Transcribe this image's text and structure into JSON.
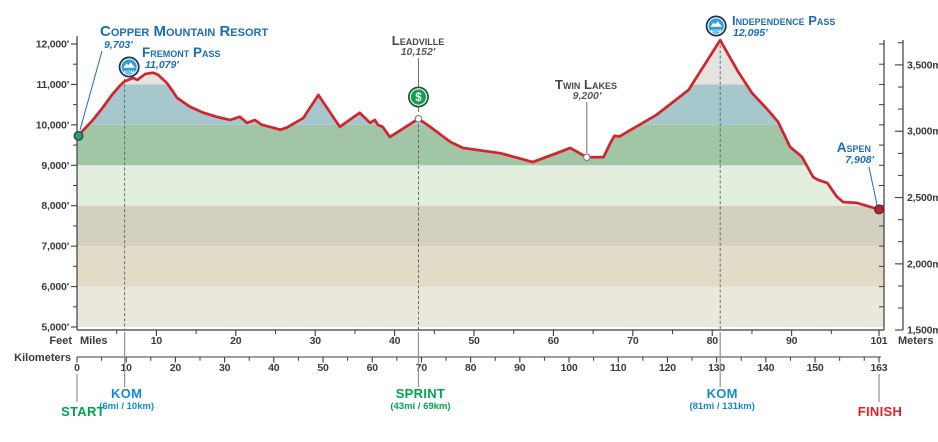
{
  "colors": {
    "red_line": "#d3232b",
    "label_blue": "#1b6eb5",
    "label_dark": "#474747",
    "elev_dark": "#5a5a5a",
    "kom_blue": "#0f8ccc",
    "green": "#00a551",
    "finish_red": "#e61e25",
    "axis_dark": "#3b3c3e",
    "connector_gray": "#919191",
    "marker_line_gray": "#6b6b6b",
    "dash_gray": "#5c5c5c",
    "badge_navy": "#16375f",
    "badge_blue": "#2e9fd8",
    "badge_green": "#13a14f",
    "badge_green_ring": "#1e5b3c",
    "start_dot": "#2ca05c",
    "end_dot": "#c8202a",
    "white_dot_stroke": "#7a7a7a",
    "white": "#ffffff"
  },
  "chart_data": {
    "type": "area",
    "profile_units": [
      "miles",
      "feet"
    ],
    "profile": [
      [
        0,
        9703
      ],
      [
        2,
        10120
      ],
      [
        3.3,
        10440
      ],
      [
        4.4,
        10740
      ],
      [
        5.5,
        10990
      ],
      [
        6,
        11079
      ],
      [
        7.1,
        11160
      ],
      [
        7.6,
        11110
      ],
      [
        8.6,
        11260
      ],
      [
        9.6,
        11290
      ],
      [
        10.2,
        11240
      ],
      [
        11.3,
        11040
      ],
      [
        12.1,
        10820
      ],
      [
        12.6,
        10670
      ],
      [
        14.2,
        10450
      ],
      [
        15.9,
        10300
      ],
      [
        17.6,
        10200
      ],
      [
        19.3,
        10120
      ],
      [
        20.5,
        10200
      ],
      [
        21.4,
        10050
      ],
      [
        22.4,
        10120
      ],
      [
        23.3,
        10000
      ],
      [
        24.3,
        9950
      ],
      [
        25.6,
        9880
      ],
      [
        26.4,
        9930
      ],
      [
        28.5,
        10170
      ],
      [
        30.4,
        10740
      ],
      [
        33.1,
        9950
      ],
      [
        35.6,
        10300
      ],
      [
        36.9,
        10050
      ],
      [
        37.5,
        10120
      ],
      [
        37.9,
        10000
      ],
      [
        38.5,
        9950
      ],
      [
        39.4,
        9700
      ],
      [
        43,
        10152
      ],
      [
        44.5,
        9950
      ],
      [
        47,
        9580
      ],
      [
        48.6,
        9430
      ],
      [
        53.3,
        9300
      ],
      [
        57.4,
        9080
      ],
      [
        61.5,
        9380
      ],
      [
        62.1,
        9430
      ],
      [
        64.2,
        9200
      ],
      [
        66.3,
        9200
      ],
      [
        67.3,
        9600
      ],
      [
        67.7,
        9730
      ],
      [
        68.3,
        9710
      ],
      [
        73,
        10250
      ],
      [
        77,
        10860
      ],
      [
        81,
        12095
      ],
      [
        82.2,
        11680
      ],
      [
        83.3,
        11300
      ],
      [
        85,
        10790
      ],
      [
        87,
        10370
      ],
      [
        88.3,
        10070
      ],
      [
        89.8,
        9455
      ],
      [
        91.3,
        9210
      ],
      [
        92.7,
        8710
      ],
      [
        93.3,
        8640
      ],
      [
        94.5,
        8560
      ],
      [
        95.7,
        8220
      ],
      [
        96.5,
        8090
      ],
      [
        98.2,
        8070
      ],
      [
        99.9,
        7970
      ],
      [
        101,
        7908
      ]
    ],
    "elevation_bands": [
      {
        "from": 5000,
        "to": 6000,
        "color": "#eae8da"
      },
      {
        "from": 6000,
        "to": 7000,
        "color": "#e0dcc8"
      },
      {
        "from": 7000,
        "to": 8000,
        "color": "#d3d0c1"
      },
      {
        "from": 8000,
        "to": 9000,
        "color": "#e2efdf"
      },
      {
        "from": 9000,
        "to": 10000,
        "color": "#a2c5a6"
      },
      {
        "from": 10000,
        "to": 11000,
        "color": "#a6c8cd"
      },
      {
        "from": 11000,
        "to": 12500,
        "color": "#e3e4e0"
      }
    ],
    "y_axis_left": {
      "unit": "Feet",
      "ticks": [
        {
          "v": 5000,
          "label": "5,000'"
        },
        {
          "v": 6000,
          "label": "6,000'"
        },
        {
          "v": 7000,
          "label": "7,000'"
        },
        {
          "v": 8000,
          "label": "8,000'"
        },
        {
          "v": 9000,
          "label": "9,000'"
        },
        {
          "v": 10000,
          "label": "10,000'"
        },
        {
          "v": 11000,
          "label": "11,000'"
        },
        {
          "v": 12000,
          "label": "12,000'"
        }
      ],
      "minor_step_feet": 500
    },
    "y_axis_right": {
      "unit": "Meters",
      "ticks": [
        {
          "v": 1500,
          "label": "1,500m"
        },
        {
          "v": 2000,
          "label": "2,000m"
        },
        {
          "v": 2500,
          "label": "2,500m"
        },
        {
          "v": 3000,
          "label": "3,000m"
        },
        {
          "v": 3500,
          "label": "3,500m"
        }
      ]
    },
    "x_axis_miles": {
      "unit": "Miles",
      "major_ticks": [
        10,
        20,
        30,
        40,
        50,
        60,
        70,
        80,
        90
      ],
      "minor_ticks": [
        5,
        15,
        25,
        35,
        45,
        55,
        65,
        75,
        85,
        95
      ],
      "end_tick": 101,
      "max": 101
    },
    "x_axis_km": {
      "unit": "Kilometers",
      "major_ticks": [
        0,
        10,
        20,
        30,
        40,
        50,
        60,
        70,
        80,
        90,
        100,
        110,
        120,
        130,
        140,
        150
      ],
      "minor_ticks": [
        5,
        15,
        25,
        35,
        45,
        55,
        65,
        75,
        85,
        95,
        105,
        115,
        125,
        135,
        145,
        155,
        160
      ],
      "end_tick": 163,
      "max": 163
    },
    "markers": [
      {
        "id": "copper",
        "name": "Copper Mountain Resort",
        "elevation_label": "9,703'",
        "mile": 0,
        "feet": 9703,
        "badge": null,
        "point": "start",
        "label_style": "blue"
      },
      {
        "id": "fremont",
        "name": "Fremont Pass",
        "elevation_label": "11,079'",
        "mile": 6,
        "feet": 11079,
        "badge": "kom",
        "point": null,
        "label_style": "blue"
      },
      {
        "id": "leadville",
        "name": "Leadville",
        "elevation_label": "10,152'",
        "mile": 43,
        "feet": 10152,
        "badge": "sprint",
        "point": "white",
        "label_style": "dark"
      },
      {
        "id": "twinlakes",
        "name": "Twin Lakes",
        "elevation_label": "9,200'",
        "mile": 64.2,
        "feet": 9200,
        "badge": null,
        "point": "white",
        "label_style": "dark"
      },
      {
        "id": "independence",
        "name": "Independence Pass",
        "elevation_label": "12,095'",
        "mile": 81,
        "feet": 12095,
        "badge": "kom",
        "point": null,
        "label_style": "blue"
      },
      {
        "id": "aspen",
        "name": "Aspen",
        "elevation_label": "7,908'",
        "mile": 101,
        "feet": 7908,
        "badge": null,
        "point": "finish",
        "label_style": "blue"
      }
    ],
    "badge_labels": {
      "kom": "KOM",
      "sprint": "$"
    },
    "bottom_markers": [
      {
        "id": "start",
        "label": "START",
        "sub": null,
        "mile": 0,
        "color_key": "green"
      },
      {
        "id": "kom1",
        "label": "KOM",
        "sub": "(6mi / 10km)",
        "mile": 6,
        "color_key": "kom_blue"
      },
      {
        "id": "sprint",
        "label": "SPRINT",
        "sub": "(43mi / 69km)",
        "mile": 43,
        "color_key": "green"
      },
      {
        "id": "kom2",
        "label": "KOM",
        "sub": "(81mi / 131km)",
        "mile": 81,
        "color_key": "kom_blue"
      },
      {
        "id": "finish",
        "label": "FINISH",
        "sub": null,
        "mile": 101,
        "color_key": "finish_red"
      }
    ]
  }
}
